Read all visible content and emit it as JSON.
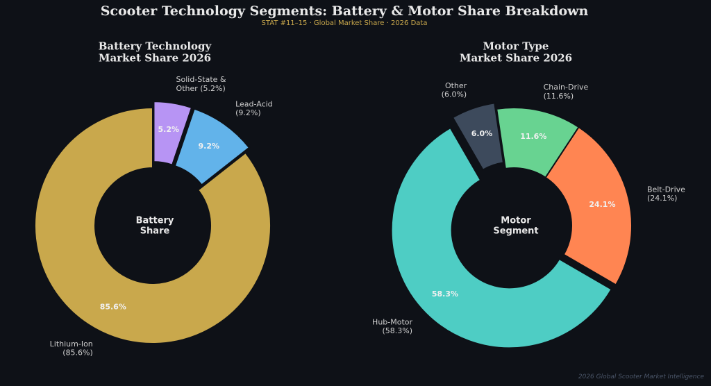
{
  "title": "Scooter Technology Segments: Battery & Motor Share Breakdown",
  "subtitle": "STAT #11–15 · Global Market Share · 2026 Data",
  "footer": "2026 Global Scooter Market Intelligence",
  "chart_data": [
    {
      "type": "donut",
      "title": "Battery Technology\nMarket Share 2026",
      "center_label": "Battery\nShare",
      "categories": [
        "Lithium-Ion",
        "Lead-Acid",
        "Solid-State & Other"
      ],
      "values": [
        85.6,
        9.2,
        5.2
      ],
      "value_labels": [
        "85.6%",
        "9.2%",
        "5.2%"
      ],
      "labels": [
        "Lithium-Ion\n(85.6%)",
        "Lead-Acid\n(9.2%)",
        "Solid-State &\nOther (5.2%)"
      ],
      "colors": [
        "#c9a84c",
        "#62b3ea",
        "#b794f4"
      ],
      "explode": [
        false,
        true,
        true
      ],
      "start_angle": 90
    },
    {
      "type": "donut",
      "title": "Motor Type\nMarket Share 2026",
      "center_label": "Motor\nSegment",
      "categories": [
        "Hub-Motor",
        "Belt-Drive",
        "Chain-Drive",
        "Other"
      ],
      "values": [
        58.3,
        24.1,
        11.6,
        6.0
      ],
      "value_labels": [
        "58.3%",
        "24.1%",
        "11.6%",
        "6.0%"
      ],
      "labels": [
        "Hub-Motor\n(58.3%)",
        "Belt-Drive\n(24.1%)",
        "Chain-Drive\n(11.6%)",
        "Other\n(6.0%)"
      ],
      "colors": [
        "#4ecdc4",
        "#ff8552",
        "#68d391",
        "#3d4a5c"
      ],
      "explode": [
        true,
        false,
        false,
        true
      ],
      "start_angle": 120
    }
  ]
}
